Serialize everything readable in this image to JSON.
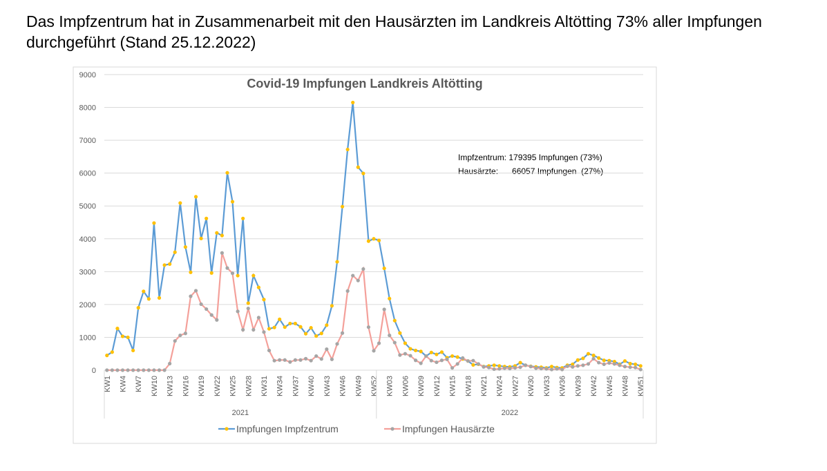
{
  "slide_title": "Das Impfzentrum hat in Zusammenarbeit mit den Hausärzten im Landkreis Altötting 73% aller Impfungen durchgeführt (Stand 25.12.2022)",
  "chart_data": {
    "type": "line",
    "title": "Covid-19 Impfungen Landkreis Altötting",
    "annotations": [
      "Impfzentrum: 179395 Impfungen (73%)",
      "Hausärzte:      66057 Impfungen  (27%)"
    ],
    "categories": [
      "KW1",
      null,
      null,
      "KW4",
      null,
      null,
      "KW7",
      null,
      null,
      "KW10",
      null,
      null,
      "KW13",
      null,
      null,
      "KW16",
      null,
      null,
      "KW19",
      null,
      null,
      "KW22",
      null,
      null,
      "KW25",
      null,
      null,
      "KW28",
      null,
      null,
      "KW31",
      null,
      null,
      "KW34",
      null,
      null,
      "KW37",
      null,
      null,
      "KW40",
      null,
      null,
      "KW43",
      null,
      null,
      "KW46",
      null,
      null,
      "KW49",
      null,
      null,
      "KW52",
      null,
      null,
      "KW03",
      null,
      null,
      "KW06",
      null,
      null,
      "KW09",
      null,
      null,
      "KW12",
      null,
      null,
      "KW15",
      null,
      null,
      "KW18",
      null,
      null,
      "KW21",
      null,
      null,
      "KW24",
      null,
      null,
      "KW27",
      null,
      null,
      "KW30",
      null,
      null,
      "KW33",
      null,
      null,
      "KW36",
      null,
      null,
      "KW39",
      null,
      null,
      "KW42",
      null,
      null,
      "KW45",
      null,
      null,
      "KW48",
      null,
      null,
      "KW51"
    ],
    "groups": [
      {
        "label": "2021",
        "count": 52
      },
      {
        "label": "2022",
        "count": 51
      }
    ],
    "series": [
      {
        "name": "Impfungen Impfzentrum",
        "color": "#5b9bd5",
        "marker_color": "#ffc000",
        "values": [
          450,
          550,
          1270,
          1030,
          1000,
          600,
          1900,
          2400,
          2170,
          4480,
          2200,
          3200,
          3230,
          3590,
          5090,
          3750,
          2980,
          5280,
          4010,
          4620,
          2960,
          4180,
          4100,
          6010,
          5130,
          2880,
          4620,
          2040,
          2880,
          2520,
          2150,
          1260,
          1300,
          1550,
          1310,
          1420,
          1420,
          1320,
          1110,
          1290,
          1040,
          1120,
          1370,
          1960,
          3300,
          4980,
          6720,
          8150,
          6180,
          5990,
          3930,
          4000,
          3950,
          3100,
          2180,
          1510,
          1130,
          820,
          650,
          600,
          570,
          430,
          540,
          480,
          550,
          380,
          430,
          400,
          340,
          280,
          160,
          180,
          110,
          130,
          150,
          130,
          110,
          100,
          130,
          230,
          150,
          120,
          100,
          90,
          70,
          110,
          80,
          70,
          150,
          180,
          310,
          360,
          500,
          450,
          370,
          300,
          290,
          260,
          180,
          280,
          200,
          180,
          130
        ]
      },
      {
        "name": "Impfungen Hausärzte",
        "color": "#f4a09a",
        "marker_color": "#a5a5a5",
        "values": [
          0,
          0,
          0,
          0,
          0,
          0,
          0,
          0,
          0,
          0,
          0,
          0,
          200,
          890,
          1060,
          1120,
          2250,
          2420,
          2010,
          1860,
          1680,
          1530,
          3570,
          3110,
          2950,
          1790,
          1230,
          1880,
          1230,
          1600,
          1160,
          600,
          290,
          310,
          310,
          250,
          310,
          310,
          350,
          290,
          430,
          340,
          640,
          330,
          800,
          1130,
          2410,
          2880,
          2730,
          3080,
          1310,
          590,
          820,
          1850,
          1060,
          840,
          460,
          500,
          440,
          300,
          210,
          430,
          290,
          240,
          300,
          330,
          70,
          190,
          370,
          280,
          290,
          190,
          100,
          80,
          30,
          40,
          60,
          50,
          70,
          90,
          150,
          110,
          60,
          50,
          40,
          20,
          40,
          20,
          120,
          100,
          130,
          150,
          190,
          350,
          230,
          180,
          220,
          190,
          150,
          110,
          90,
          80,
          20
        ]
      }
    ],
    "ylim": [
      0,
      9000
    ],
    "yticks": [
      0,
      1000,
      2000,
      3000,
      4000,
      5000,
      6000,
      7000,
      8000,
      9000
    ],
    "grid": true,
    "legend": "bottom"
  }
}
